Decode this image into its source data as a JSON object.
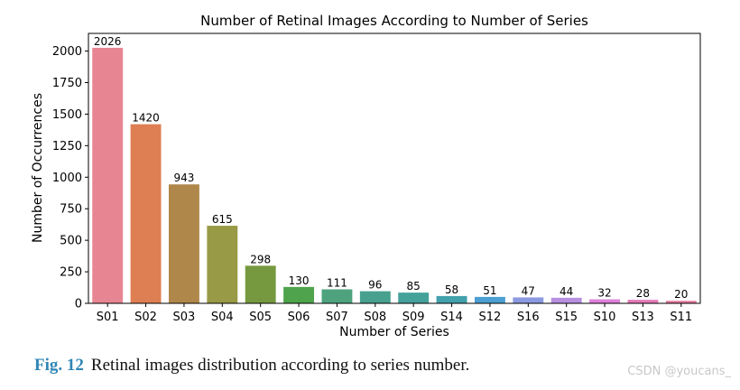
{
  "chart_data": {
    "type": "bar",
    "title": "Number of Retinal Images According to Number of Series",
    "xlabel": "Number of Series",
    "ylabel": "Number of Occurrences",
    "categories": [
      "S01",
      "S02",
      "S03",
      "S04",
      "S05",
      "S06",
      "S07",
      "S08",
      "S09",
      "S14",
      "S12",
      "S16",
      "S15",
      "S10",
      "S13",
      "S11"
    ],
    "values": [
      2026,
      1420,
      943,
      615,
      298,
      130,
      111,
      96,
      85,
      58,
      51,
      47,
      44,
      32,
      28,
      20
    ],
    "colors": [
      "#e78593",
      "#de7f53",
      "#b0874a",
      "#989a46",
      "#76993f",
      "#4ea34c",
      "#4ea37e",
      "#48a08e",
      "#45a29b",
      "#43a0ad",
      "#4b9fd2",
      "#8b9ae0",
      "#b88fe0",
      "#dd82d8",
      "#e47ab7",
      "#e57b9c"
    ],
    "yticks": [
      0,
      250,
      500,
      750,
      1000,
      1250,
      1500,
      1750,
      2000
    ],
    "ylim": [
      0,
      2140
    ],
    "grid": false,
    "legend": "none"
  },
  "caption": {
    "label": "Fig. 12",
    "text": "Retinal images distribution according to series number."
  },
  "watermark": "CSDN @youcans_"
}
